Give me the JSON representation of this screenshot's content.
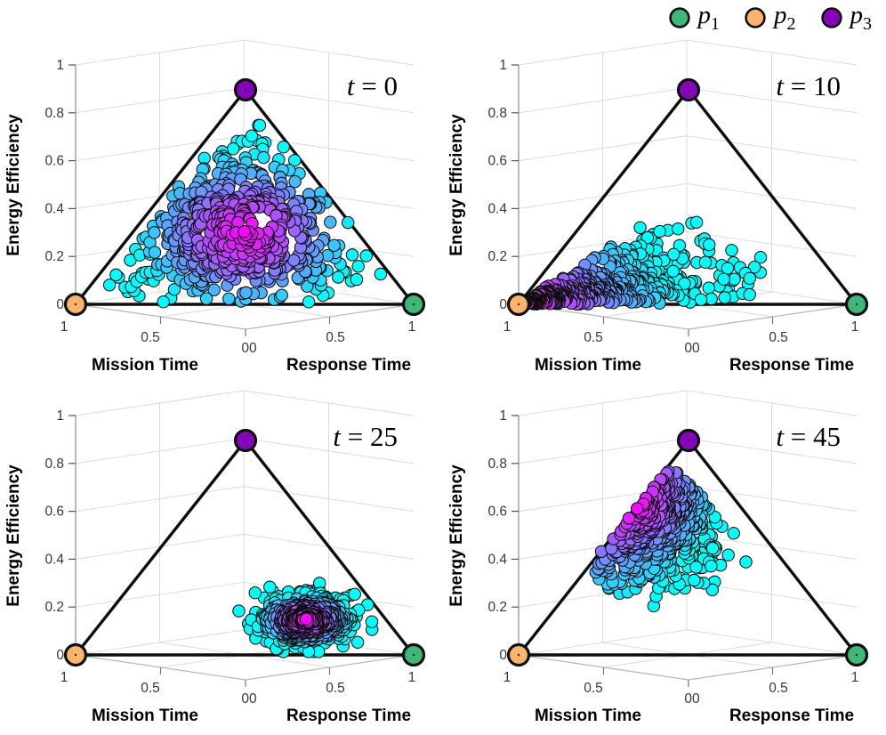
{
  "legend": {
    "items": [
      {
        "symbol": "p",
        "sub": "1",
        "color": "#3db879"
      },
      {
        "symbol": "p",
        "sub": "2",
        "color": "#fbb46c"
      },
      {
        "symbol": "p",
        "sub": "3",
        "color": "#8604bc"
      }
    ]
  },
  "axes": {
    "z": {
      "label": "Energy Efficiency",
      "ticks": [
        {
          "label": "0",
          "value": 0
        },
        {
          "label": "0.2",
          "value": 0.2
        },
        {
          "label": "0.4",
          "value": 0.4
        },
        {
          "label": "0.6",
          "value": 0.6
        },
        {
          "label": "0.8",
          "value": 0.8
        },
        {
          "label": "1",
          "value": 1
        }
      ]
    },
    "left": {
      "label": "Mission Time",
      "ticks": [
        {
          "label": "1",
          "m": 1
        },
        {
          "label": "0.5",
          "m": 0.5
        }
      ]
    },
    "right": {
      "label": "Response Time",
      "ticks": [
        {
          "label": "0.5",
          "r": 0.5
        },
        {
          "label": "1",
          "r": 1
        }
      ]
    },
    "origin_label": "00"
  },
  "vertices": [
    {
      "name": "p1",
      "color": "#3db879",
      "simplex": [
        0,
        1,
        0
      ],
      "position": "bottom-right"
    },
    {
      "name": "p2",
      "color": "#fbb46c",
      "simplex": [
        1,
        0,
        0
      ],
      "position": "bottom-left"
    },
    {
      "name": "p3",
      "color": "#8604bc",
      "simplex": [
        0,
        0,
        1
      ],
      "position": "top"
    }
  ],
  "colormap": {
    "name": "cool",
    "low": "#00ffff",
    "high": "#ff00ff",
    "meaning": "cyan = cloud fringe, magenta = dense core"
  },
  "chart_data": [
    {
      "type": "scatter",
      "projection": "3d-simplex",
      "title": "t = 0",
      "zlabel": "Energy Efficiency",
      "xlabel_left": "Mission Time",
      "xlabel_right": "Response Time",
      "axis_ranges": {
        "mission_time": [
          0,
          1
        ],
        "response_time": [
          0,
          1
        ],
        "energy_efficiency": [
          0,
          1
        ]
      },
      "n_points": 520,
      "distribution_summary": "points spread over nearly the whole simplex, densest (magenta) at the centroid, cyan at the fringes; efficiency values 0 to ~0.84",
      "observed": {
        "center_mrz": [
          0.33,
          0.33,
          0.33
        ],
        "z_range": [
          0.0,
          0.84
        ]
      },
      "generator": {
        "kind": "dirichlet",
        "alpha": [
          2.1,
          2.1,
          2.1
        ],
        "zmax": 0.84,
        "count": 520,
        "seed": 101,
        "color": {
          "center": [
            0.333,
            0.333,
            0.333
          ],
          "scale": 0.48,
          "gamma": 1.1
        }
      }
    },
    {
      "type": "scatter",
      "projection": "3d-simplex",
      "title": "t = 10",
      "zlabel": "Energy Efficiency",
      "xlabel_left": "Mission Time",
      "xlabel_right": "Response Time",
      "axis_ranges": {
        "mission_time": [
          0,
          1
        ],
        "response_time": [
          0,
          1
        ],
        "energy_efficiency": [
          0,
          1
        ]
      },
      "n_points": 560,
      "distribution_summary": "fan-shaped cloud collapsing onto the p2 (mission-time) corner; magenta tip at mission≈1, cyan fringe spreads right up to efficiency≈0.5",
      "observed": {
        "corner": "p2",
        "z_range": [
          0.0,
          0.52
        ],
        "response_max": 0.6
      },
      "generator": {
        "kind": "corner_fan",
        "d_beta": [
          1.25,
          2.6
        ],
        "d_scale": 0.85,
        "v_beta": [
          1.5,
          2.1
        ],
        "v_scale": 0.72,
        "count": 560,
        "seed": 202,
        "color": {
          "scale": 0.5
        }
      }
    },
    {
      "type": "scatter",
      "projection": "3d-simplex",
      "title": "t = 25",
      "zlabel": "Energy Efficiency",
      "xlabel_left": "Mission Time",
      "xlabel_right": "Response Time",
      "axis_ranges": {
        "mission_time": [
          0,
          1
        ],
        "response_time": [
          0,
          1
        ],
        "energy_efficiency": [
          0,
          1
        ]
      },
      "n_points": 520,
      "distribution_summary": "compact elliptical blob just above the bottom edge, centered right of middle; magenta core at (m≈0.24, r≈0.60, eff≈0.16), efficiency 0–0.42",
      "observed": {
        "center_mrz": [
          0.24,
          0.6,
          0.165
        ],
        "z_range": [
          0.0,
          0.42
        ]
      },
      "generator": {
        "kind": "gauss_cluster",
        "center": {
          "z": 0.165,
          "lat": 0.36
        },
        "sigma": {
          "z": 0.055,
          "lat": 0.13
        },
        "clamp_z": [
          0.015,
          0.42
        ],
        "count": 520,
        "seed": 303,
        "color": {
          "norm": 2.1,
          "gamma": 0.9
        }
      }
    },
    {
      "type": "scatter",
      "projection": "3d-simplex",
      "title": "t = 45",
      "zlabel": "Energy Efficiency",
      "xlabel_left": "Mission Time",
      "xlabel_right": "Response Time",
      "axis_ranges": {
        "mission_time": [
          0,
          1
        ],
        "response_time": [
          0,
          1
        ],
        "energy_efficiency": [
          0,
          1
        ]
      },
      "n_points": 430,
      "distribution_summary": "elongated band hugging the p2–p3 edge, climbing toward the p3 vertex; magenta spine along the edge at efficiency 0.45–0.7, cyan fringe to the right; efficiency 0.2–0.8",
      "observed": {
        "edge": "p2-p3",
        "z_range": [
          0.2,
          0.8
        ],
        "response_max": 0.45
      },
      "generator": {
        "kind": "edge_band",
        "s_base": 0.3,
        "s_span": 0.6,
        "s_beta": [
          2.3,
          1.6
        ],
        "w_beta": [
          1.35,
          3.4
        ],
        "w_scale": 0.5,
        "count": 430,
        "seed": 404,
        "color": {
          "w_scale": 0.26,
          "s_center": 0.7,
          "s_width": 0.42,
          "gamma": 0.85
        }
      }
    }
  ],
  "style": {
    "triangle_edge_color": "#0d0d0d",
    "grid_color": "#dcdcdc",
    "floor_front_color": "#b5b5b5",
    "axis_line_color": "#8c8c8c",
    "tick_text_color": "#383838",
    "marker_edge_color": "#0e0e0e"
  }
}
